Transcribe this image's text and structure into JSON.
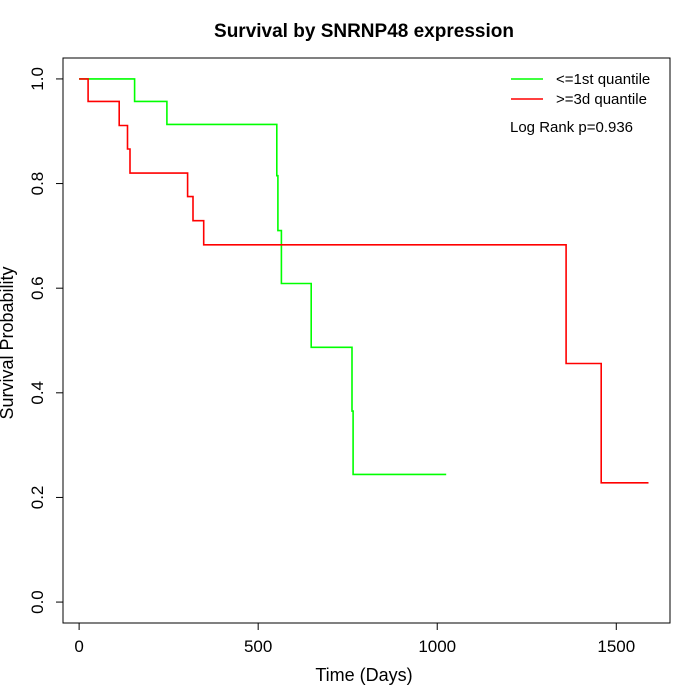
{
  "chart_data": {
    "type": "line",
    "step": true,
    "title": "Survival by SNRNP48 expression",
    "xlabel": "Time (Days)",
    "ylabel": "Survival Probability",
    "xlim": [
      -45,
      1650
    ],
    "ylim": [
      -0.04,
      1.04
    ],
    "xticks": [
      0,
      500,
      1000,
      1500
    ],
    "xtick_labels": [
      "0",
      "500",
      "1000",
      "1500"
    ],
    "yticks": [
      0.0,
      0.2,
      0.4,
      0.6,
      0.8,
      1.0
    ],
    "ytick_labels": [
      "0.0",
      "0.2",
      "0.4",
      "0.6",
      "0.8",
      "1.0"
    ],
    "legend_position": "top-right",
    "annotation": "Log Rank p=0.936",
    "series": [
      {
        "name": "<=1st quantile",
        "color": "#00ff00",
        "points": [
          [
            0,
            1.0
          ],
          [
            155,
            1.0
          ],
          [
            155,
            0.957
          ],
          [
            245,
            0.957
          ],
          [
            245,
            0.913
          ],
          [
            552,
            0.913
          ],
          [
            552,
            0.815
          ],
          [
            555,
            0.815
          ],
          [
            555,
            0.71
          ],
          [
            565,
            0.71
          ],
          [
            565,
            0.609
          ],
          [
            648,
            0.609
          ],
          [
            648,
            0.487
          ],
          [
            762,
            0.487
          ],
          [
            762,
            0.365
          ],
          [
            765,
            0.365
          ],
          [
            765,
            0.244
          ],
          [
            1025,
            0.244
          ]
        ]
      },
      {
        "name": ">=3d quantile",
        "color": "#ff0000",
        "points": [
          [
            0,
            1.0
          ],
          [
            25,
            1.0
          ],
          [
            25,
            0.957
          ],
          [
            112,
            0.957
          ],
          [
            112,
            0.911
          ],
          [
            135,
            0.911
          ],
          [
            135,
            0.866
          ],
          [
            142,
            0.866
          ],
          [
            142,
            0.82
          ],
          [
            303,
            0.82
          ],
          [
            303,
            0.775
          ],
          [
            318,
            0.775
          ],
          [
            318,
            0.729
          ],
          [
            348,
            0.729
          ],
          [
            348,
            0.683
          ],
          [
            1360,
            0.683
          ],
          [
            1360,
            0.456
          ],
          [
            1458,
            0.456
          ],
          [
            1458,
            0.228
          ],
          [
            1590,
            0.228
          ]
        ]
      }
    ]
  }
}
